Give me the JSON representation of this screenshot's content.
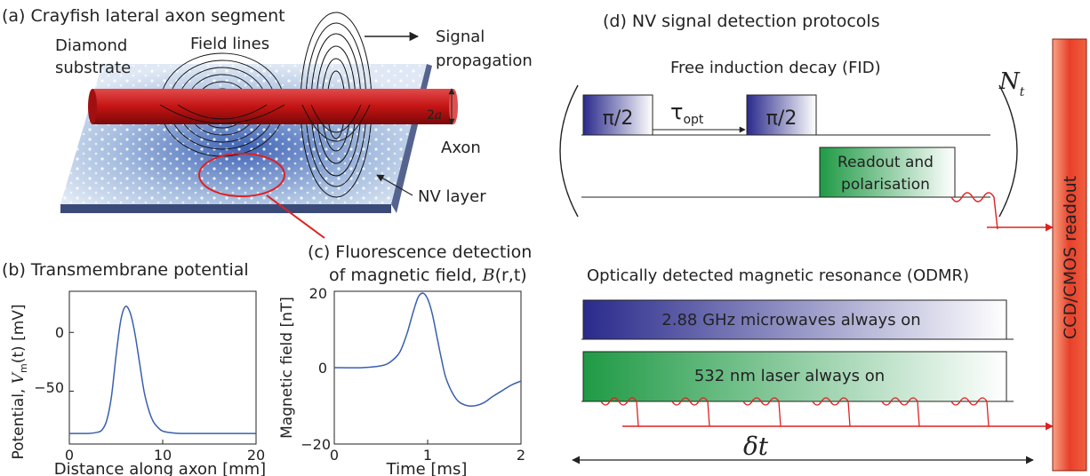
{
  "panel_a": {
    "title": "(a) Crayfish lateral axon segment",
    "diamond_1": "Diamond",
    "diamond_2": "substrate",
    "field_lines": "Field lines",
    "signal_1": "Signal",
    "signal_2": "propagation",
    "radius_num": "2",
    "radius_var": "a",
    "axon": "Axon",
    "nv_layer": "NV layer"
  },
  "panel_b": {
    "title": "(b) Transmembrane potential",
    "ylabel_prefix": "Potential, ",
    "ylabel_var": "V",
    "ylabel_sub": "m",
    "ylabel_arg": "(t)",
    "ylabel_unit": "  [mV]",
    "xlabel": "Distance along axon [mm]",
    "x_ticks": [
      "0",
      "10",
      "20"
    ],
    "y_ticks": [
      "0",
      "−50"
    ]
  },
  "panel_c": {
    "title_1": "(c) Fluorescence detection",
    "title_2_prefix": "of magnetic field, ",
    "title_2_var": "B",
    "title_2_arg": "(r,t)",
    "ylabel": "Magnetic field [nT]",
    "xlabel": "Time [ms]",
    "x_ticks": [
      "0",
      "1",
      "2"
    ],
    "y_ticks": [
      "20",
      "0",
      "−20"
    ]
  },
  "panel_d": {
    "title": "(d) NV signal detection protocols",
    "fid_title": "Free induction decay (FID)",
    "pulse_1": "π/2",
    "pulse_2": "π/2",
    "tau": "τ",
    "tau_sub": "opt",
    "readout_1": "Readout and",
    "readout_2": "polarisation",
    "nt": "N",
    "nt_sub": "t",
    "odmr_title": "Optically detected magnetic resonance (ODMR)",
    "microwave": "2.88 GHz microwaves always on",
    "laser": "532 nm laser always on",
    "delta_t": "δt",
    "ccd": "CCD/CMOS readout"
  },
  "colors": {
    "axon_red": "#c41414",
    "pulse_blue": "#2a2a8c",
    "laser_green": "#1f9a45",
    "curve_blue": "#3a5fb0",
    "ccd_red": "#e8402a"
  },
  "chart_data": [
    {
      "type": "line",
      "title": "(b) Transmembrane potential",
      "xlabel": "Distance along axon [mm]",
      "ylabel": "Potential, Vm(t) [mV]",
      "xlim": [
        0,
        20
      ],
      "ylim": [
        -95,
        35
      ],
      "x_ticks": [
        0,
        10,
        20
      ],
      "y_ticks": [
        0,
        -50
      ],
      "series": [
        {
          "x": [
            0,
            2,
            3,
            3.5,
            4,
            4.5,
            5,
            5.5,
            6,
            6.5,
            7,
            7.5,
            8,
            8.5,
            9,
            9.5,
            10,
            11,
            12,
            14,
            17,
            20
          ],
          "y": [
            -86,
            -86,
            -85,
            -83,
            -75,
            -55,
            -20,
            10,
            22,
            17,
            0,
            -25,
            -50,
            -66,
            -76,
            -81,
            -84,
            -85.5,
            -86,
            -86,
            -86,
            -86
          ]
        }
      ]
    },
    {
      "type": "line",
      "title": "(c) Fluorescence detection of magnetic field, B(r,t)",
      "xlabel": "Time [ms]",
      "ylabel": "Magnetic field [nT]",
      "xlim": [
        0,
        2
      ],
      "ylim": [
        -20,
        20
      ],
      "x_ticks": [
        0,
        1,
        2
      ],
      "y_ticks": [
        20,
        0,
        -20
      ],
      "series": [
        {
          "x": [
            0,
            0.3,
            0.5,
            0.6,
            0.7,
            0.78,
            0.85,
            0.9,
            0.95,
            1.0,
            1.05,
            1.1,
            1.15,
            1.2,
            1.3,
            1.4,
            1.5,
            1.6,
            1.7,
            1.8,
            1.9,
            2.0
          ],
          "y": [
            0,
            0,
            0.5,
            1.5,
            4,
            9,
            15,
            18.5,
            19.5,
            18,
            14,
            8,
            2,
            -3,
            -8,
            -9.8,
            -10,
            -9.2,
            -7.5,
            -6,
            -4.5,
            -3.5
          ]
        }
      ]
    }
  ]
}
